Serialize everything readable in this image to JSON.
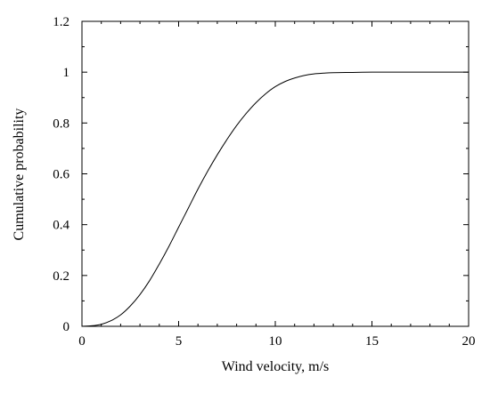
{
  "chart_data": {
    "type": "line",
    "xlabel": "Wind velocity, m/s",
    "ylabel": "Cumulative probability",
    "xlim": [
      0,
      20
    ],
    "ylim": [
      0,
      1.2
    ],
    "xticks": [
      "0",
      "5",
      "10",
      "15",
      "20"
    ],
    "yticks": [
      "0",
      "0.2",
      "0.4",
      "0.6",
      "0.8",
      "1",
      "1.2"
    ],
    "grid": false,
    "series": [
      {
        "x": [
          0,
          0.5,
          1,
          1.5,
          2,
          2.5,
          3,
          3.5,
          4,
          4.5,
          5,
          5.5,
          6,
          6.5,
          7,
          7.5,
          8,
          8.5,
          9,
          9.5,
          10,
          10.5,
          11,
          11.5,
          12,
          12.5,
          13,
          14,
          15,
          16,
          17,
          18,
          19,
          20
        ],
        "y": [
          0,
          0.002,
          0.008,
          0.022,
          0.045,
          0.08,
          0.125,
          0.18,
          0.245,
          0.315,
          0.39,
          0.465,
          0.54,
          0.61,
          0.675,
          0.735,
          0.79,
          0.838,
          0.88,
          0.915,
          0.943,
          0.963,
          0.977,
          0.987,
          0.993,
          0.996,
          0.998,
          0.999,
          1.0,
          1.0,
          1.0,
          1.0,
          1.0,
          1.0
        ]
      }
    ]
  }
}
